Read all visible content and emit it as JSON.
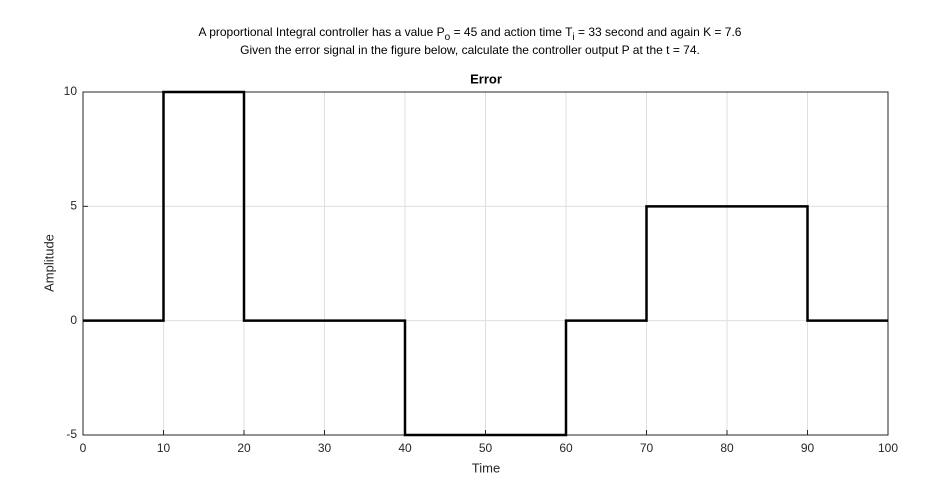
{
  "question": {
    "line1": [
      "A proportional Integral controller has a value  P",
      "o",
      " = 45   and action time T",
      "i",
      " = 33  second  and again  K = 7.6"
    ],
    "line2": "Given the error signal in the figure below, calculate the controller output P at the t = 74."
  },
  "chart_data": {
    "type": "line",
    "title": "Error",
    "x_label": "Time",
    "y_label": "Amplitude",
    "x": [
      0,
      10,
      10,
      20,
      20,
      40,
      40,
      60,
      60,
      70,
      70,
      90,
      90,
      100
    ],
    "series": [
      {
        "name": "Error",
        "color": "#000000",
        "values": [
          0,
          0,
          10,
          10,
          0,
          0,
          -5,
          -5,
          0,
          0,
          5,
          5,
          0,
          0
        ]
      }
    ],
    "xlim": [
      0,
      100
    ],
    "xticks": [
      0,
      10,
      20,
      30,
      40,
      50,
      60,
      70,
      80,
      90,
      100
    ],
    "ylim": [
      -5,
      10
    ],
    "yticks": [
      -5,
      0,
      5,
      10
    ],
    "grid": true
  }
}
